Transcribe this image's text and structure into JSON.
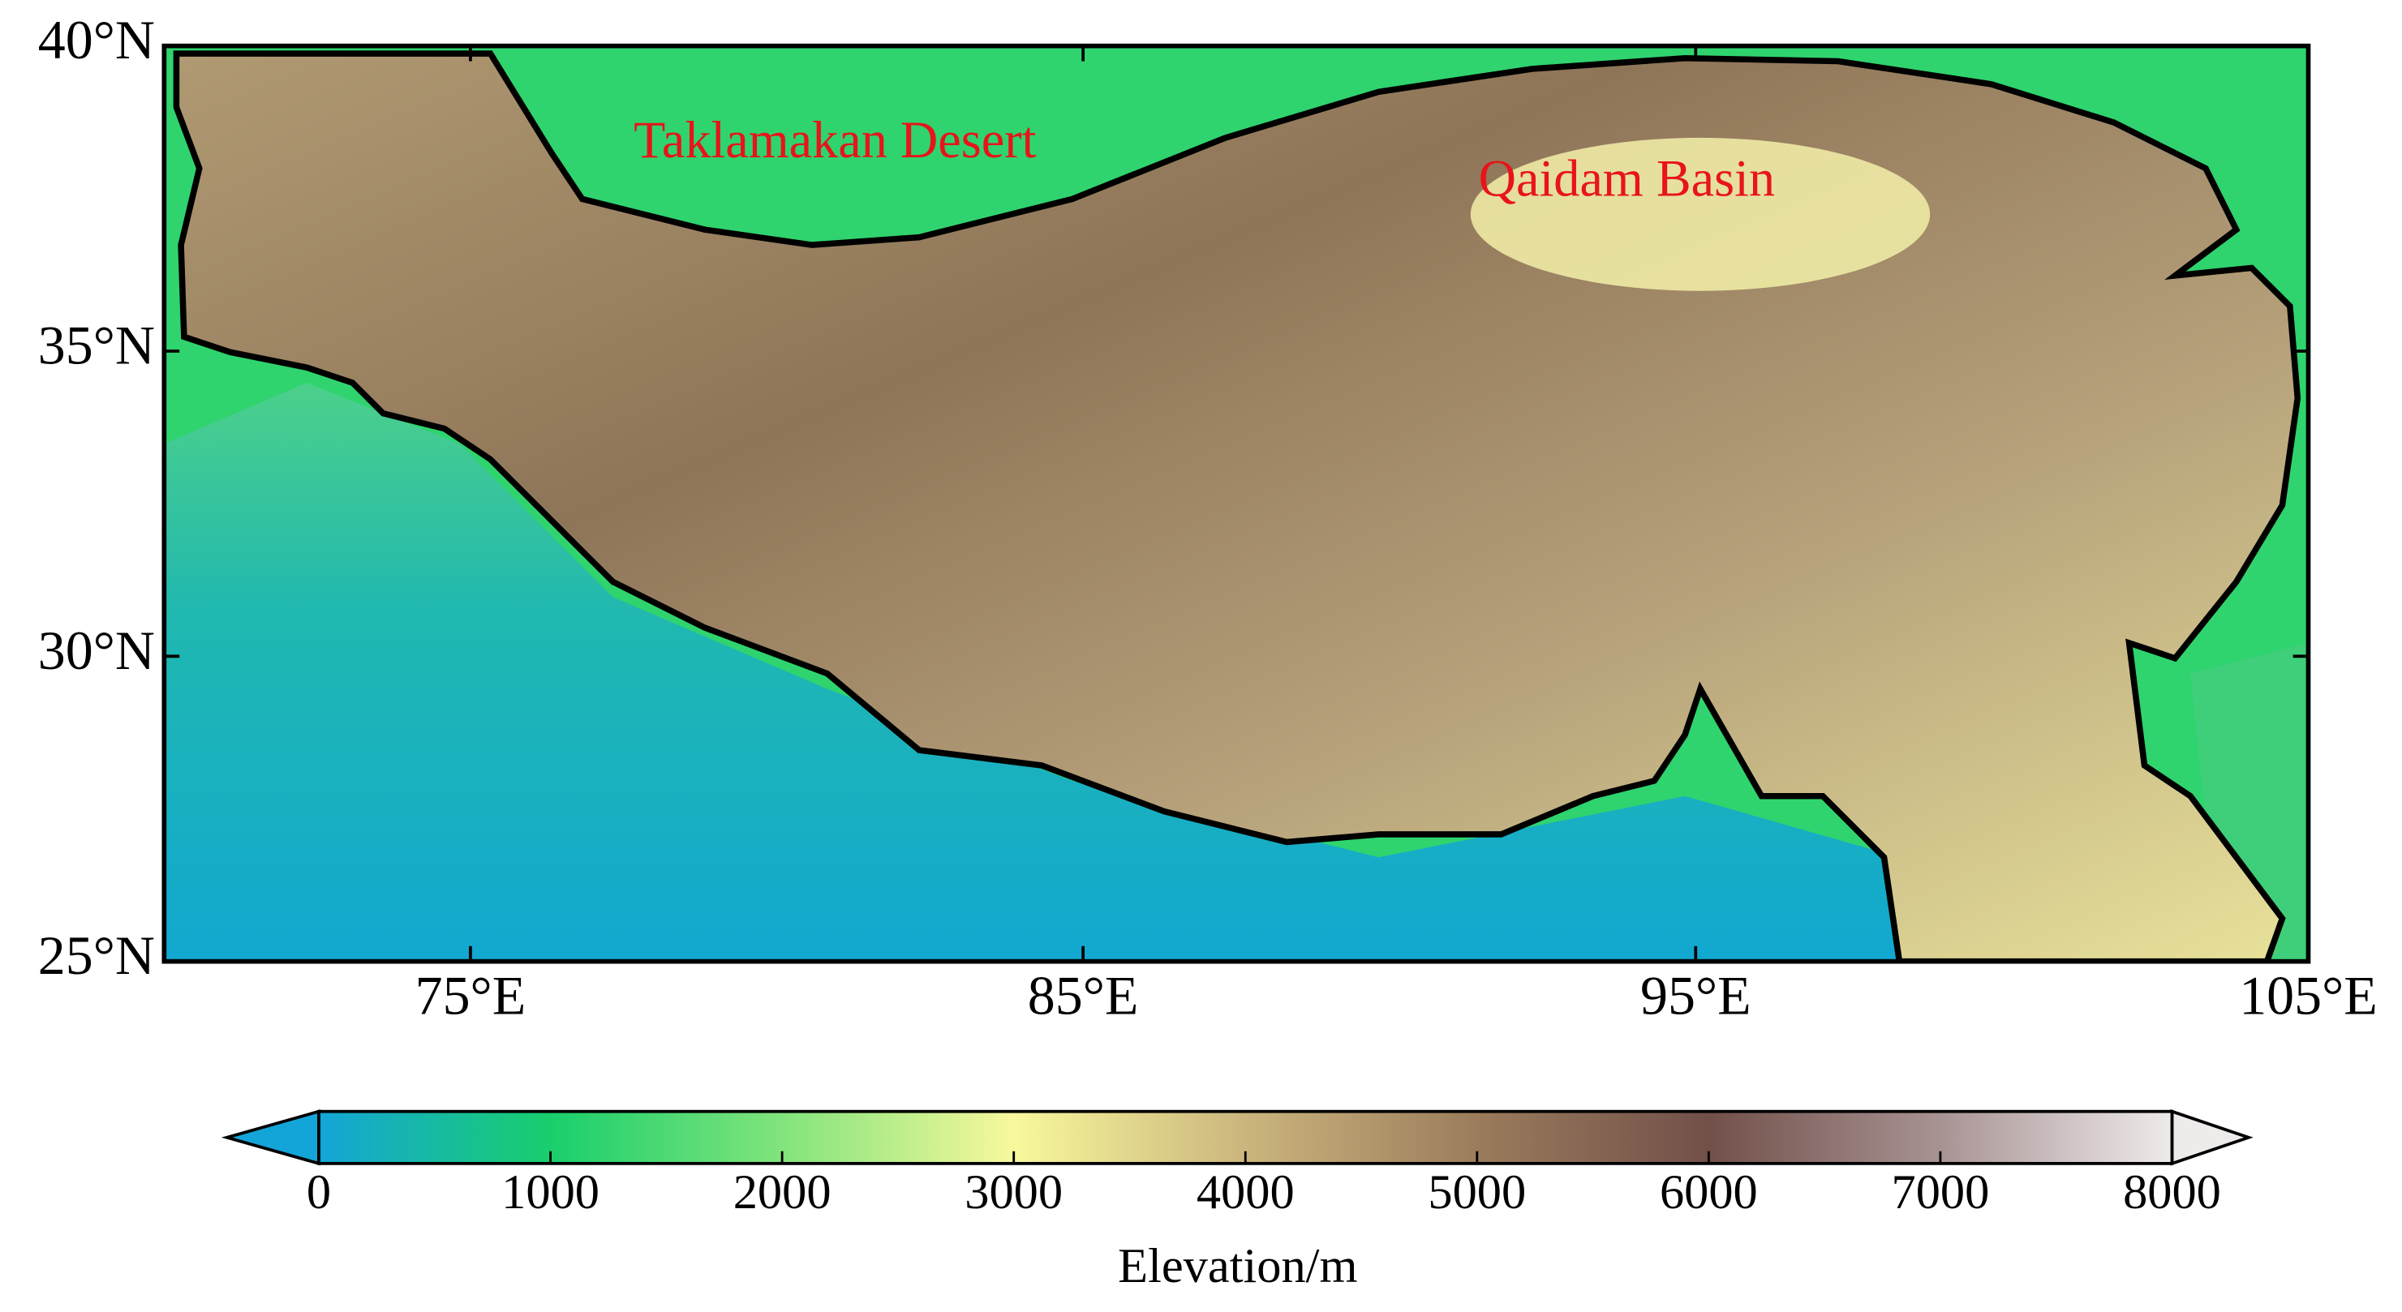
{
  "map": {
    "annotations": [
      "Taklamakan Desert",
      "Qaidam Basin"
    ],
    "xlim": [
      70,
      105
    ],
    "ylim": [
      25,
      40
    ],
    "xticks": [
      {
        "value": 75,
        "label": "75°E"
      },
      {
        "value": 85,
        "label": "85°E"
      },
      {
        "value": 95,
        "label": "95°E"
      },
      {
        "value": 105,
        "label": "105°E"
      }
    ],
    "yticks": [
      {
        "value": 25,
        "label": "25°N"
      },
      {
        "value": 30,
        "label": "30°N"
      },
      {
        "value": 35,
        "label": "35°N"
      },
      {
        "value": 40,
        "label": "40°N"
      }
    ],
    "colorbar": {
      "label": "Elevation/m",
      "lim": [
        0,
        8000
      ],
      "ticks": [
        0,
        1000,
        2000,
        3000,
        4000,
        5000,
        6000,
        7000,
        8000
      ],
      "colors": [
        "#14a5d8",
        "#19cf6c",
        "#82e47c",
        "#f8f89c",
        "#cbb57d",
        "#9b7c5c",
        "#72504a",
        "#a89393",
        "#efebeb"
      ]
    }
  }
}
